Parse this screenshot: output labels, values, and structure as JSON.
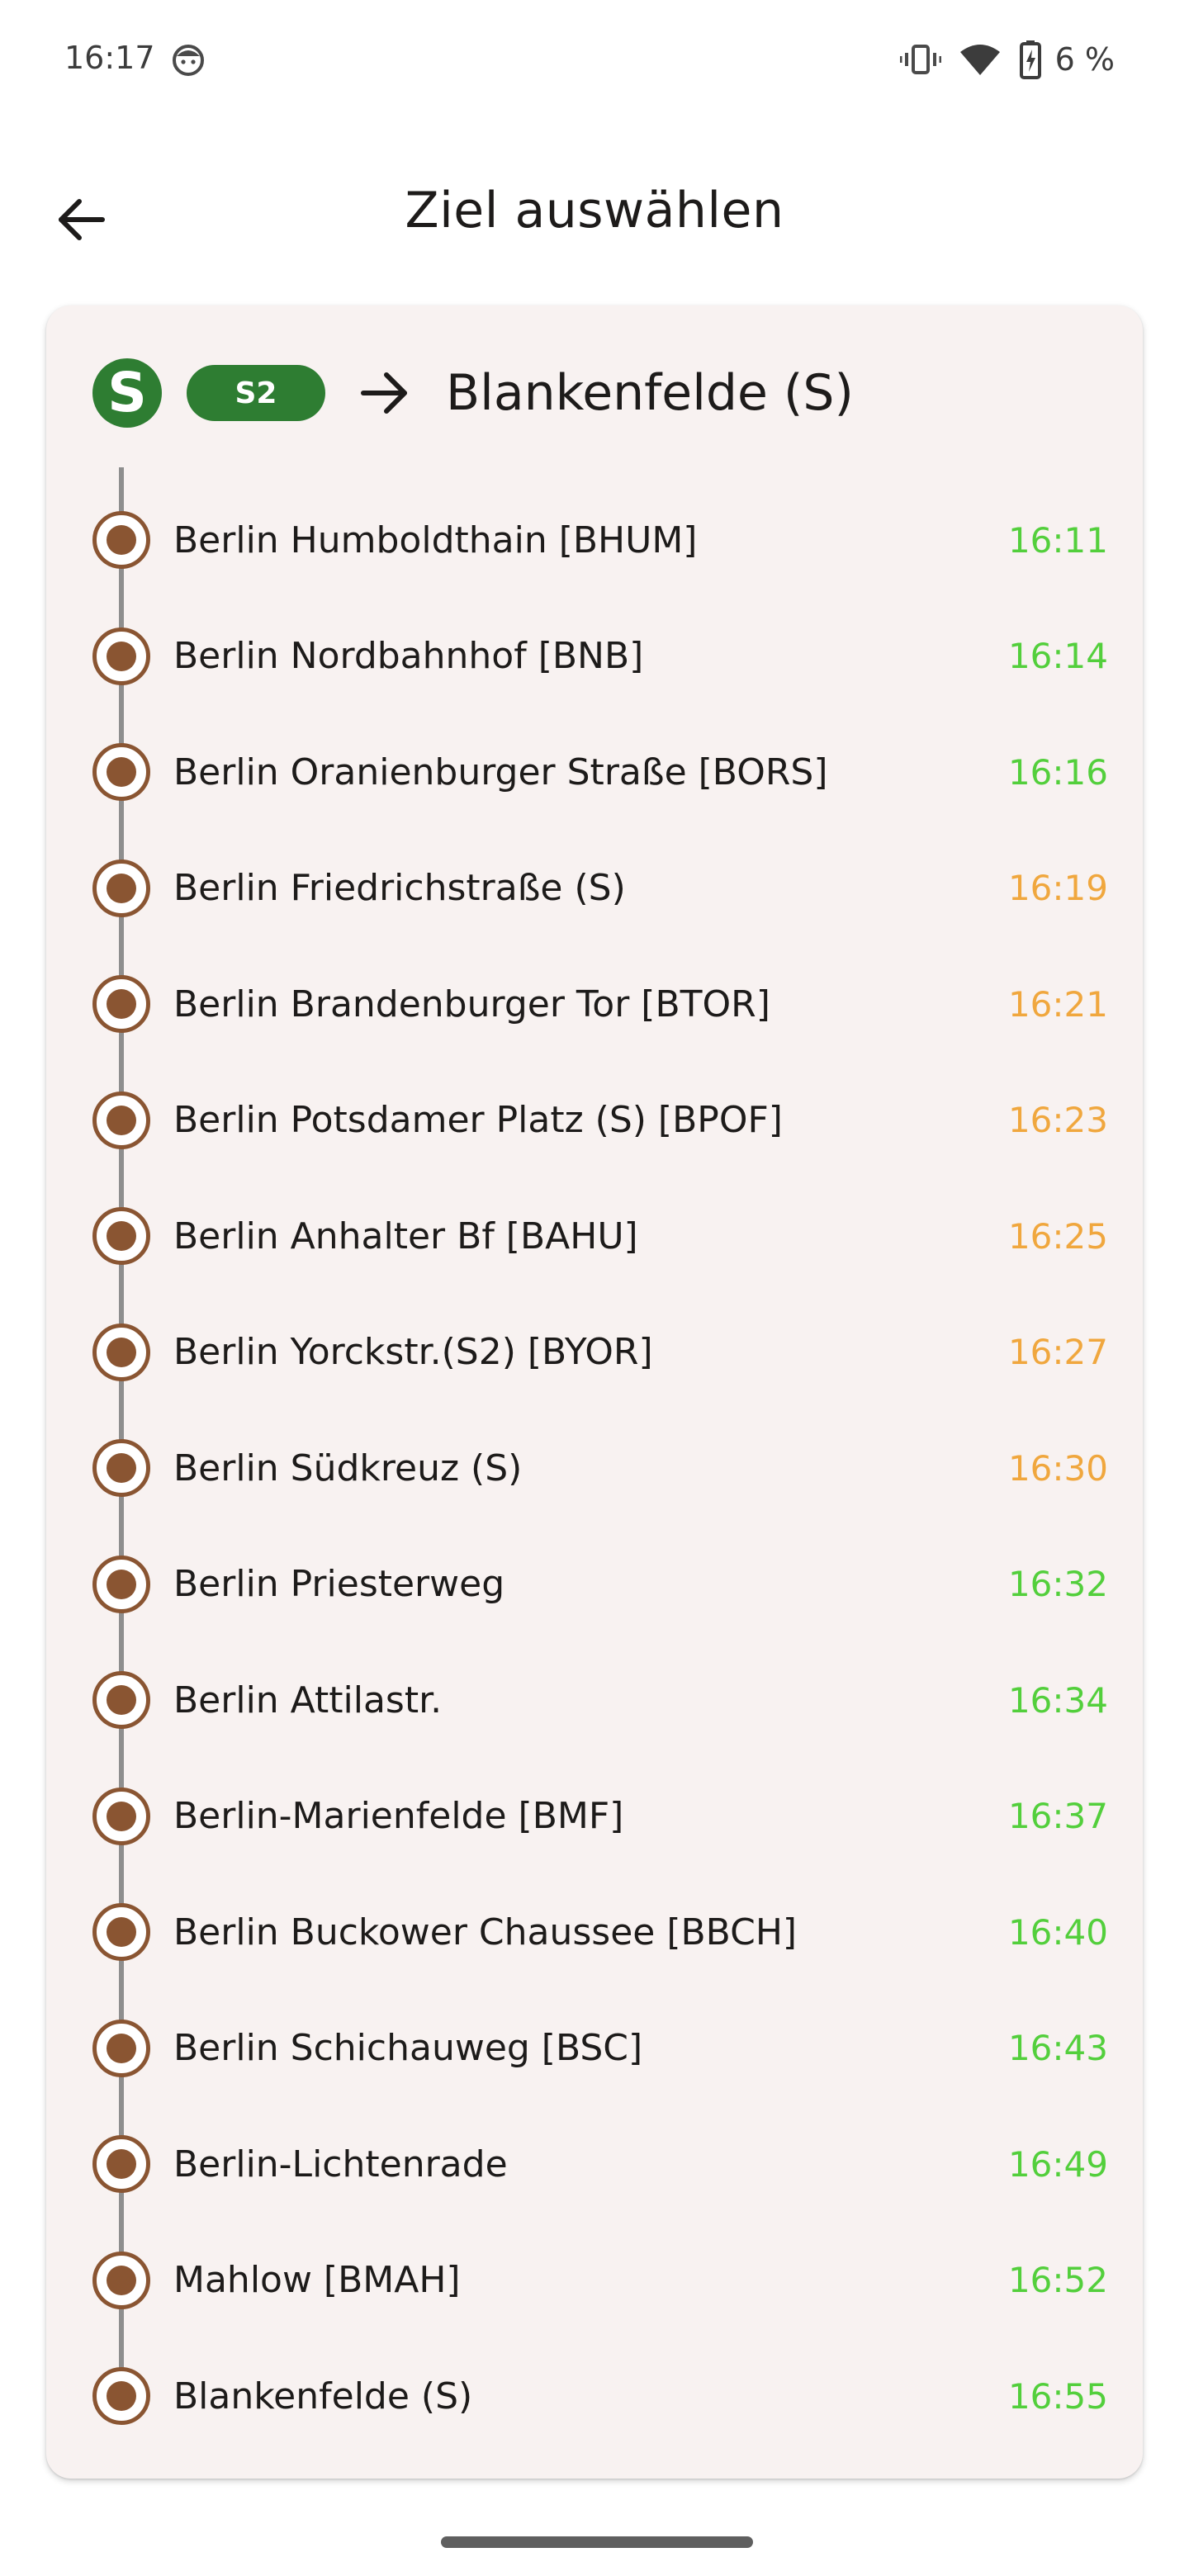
{
  "status_bar": {
    "time": "16:17",
    "battery_text": "6 %"
  },
  "app_bar": {
    "title": "Ziel auswählen"
  },
  "route": {
    "logo_letter": "S",
    "line": "S2",
    "destination": "Blankenfelde (S)",
    "line_color": "#2e7d32"
  },
  "colors": {
    "on_time": "#53cf3c",
    "delayed": "#f0a73e",
    "marker": "#8a5532"
  },
  "stops": [
    {
      "name": "Berlin Humboldthain [BHUM]",
      "time": "16:11",
      "status": "on-time"
    },
    {
      "name": "Berlin Nordbahnhof [BNB]",
      "time": "16:14",
      "status": "on-time"
    },
    {
      "name": "Berlin Oranienburger Straße [BORS]",
      "time": "16:16",
      "status": "on-time"
    },
    {
      "name": "Berlin Friedrichstraße (S)",
      "time": "16:19",
      "status": "delayed"
    },
    {
      "name": "Berlin Brandenburger Tor [BTOR]",
      "time": "16:21",
      "status": "delayed"
    },
    {
      "name": "Berlin Potsdamer Platz (S) [BPOF]",
      "time": "16:23",
      "status": "delayed"
    },
    {
      "name": "Berlin Anhalter Bf [BAHU]",
      "time": "16:25",
      "status": "delayed"
    },
    {
      "name": "Berlin Yorckstr.(S2) [BYOR]",
      "time": "16:27",
      "status": "delayed"
    },
    {
      "name": "Berlin Südkreuz (S)",
      "time": "16:30",
      "status": "delayed"
    },
    {
      "name": "Berlin Priesterweg",
      "time": "16:32",
      "status": "on-time"
    },
    {
      "name": "Berlin Attilastr.",
      "time": "16:34",
      "status": "on-time"
    },
    {
      "name": "Berlin-Marienfelde [BMF]",
      "time": "16:37",
      "status": "on-time"
    },
    {
      "name": "Berlin Buckower Chaussee [BBCH]",
      "time": "16:40",
      "status": "on-time"
    },
    {
      "name": "Berlin Schichauweg [BSC]",
      "time": "16:43",
      "status": "on-time"
    },
    {
      "name": "Berlin-Lichtenrade",
      "time": "16:49",
      "status": "on-time"
    },
    {
      "name": "Mahlow [BMAH]",
      "time": "16:52",
      "status": "on-time"
    },
    {
      "name": "Blankenfelde (S)",
      "time": "16:55",
      "status": "on-time"
    }
  ]
}
